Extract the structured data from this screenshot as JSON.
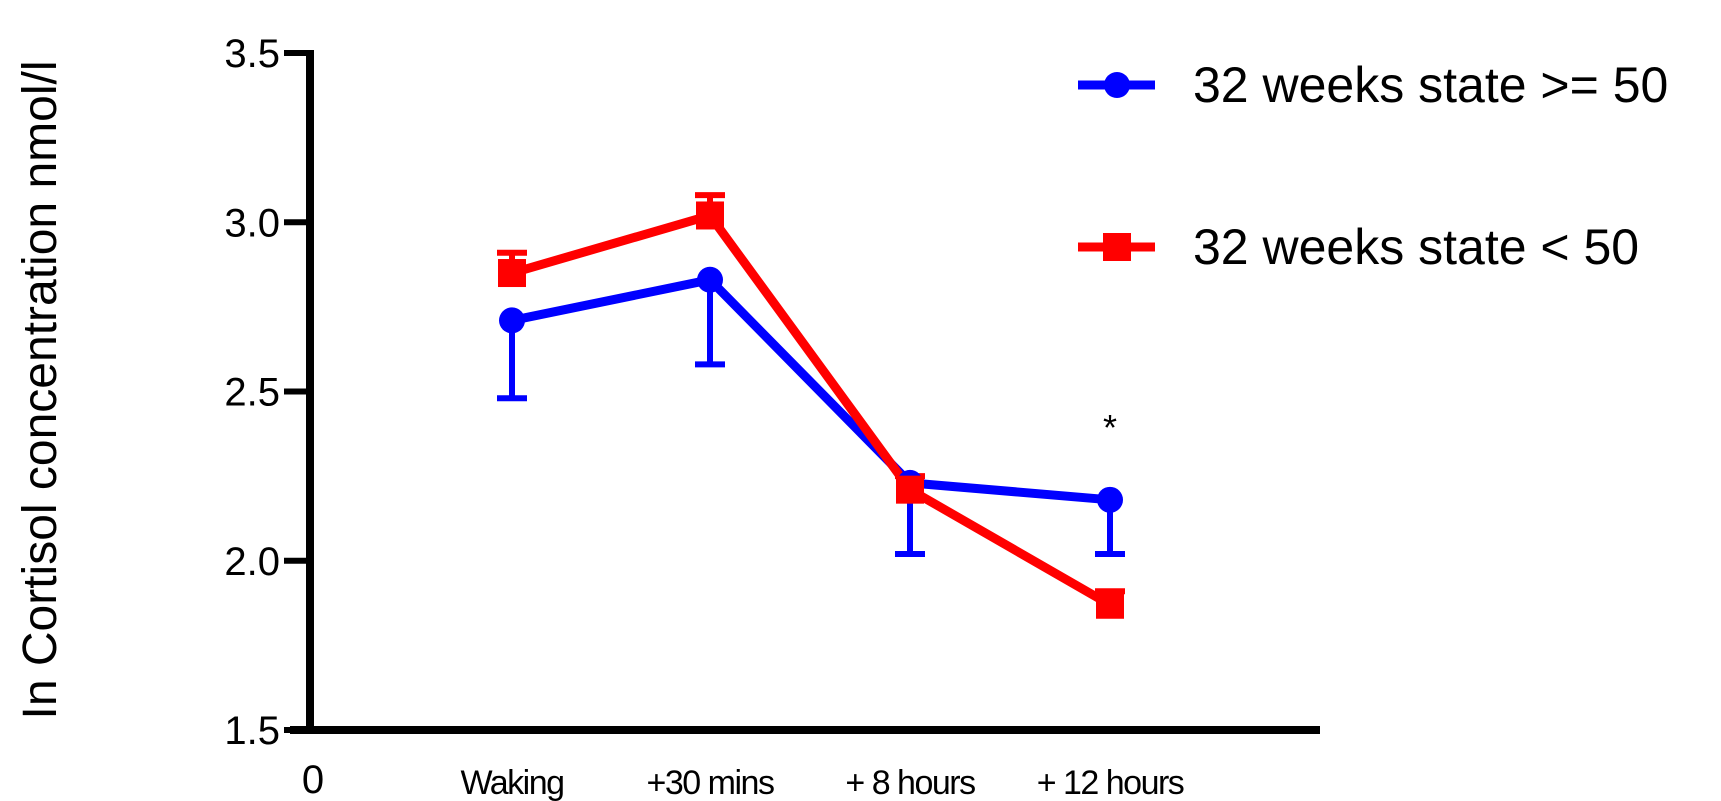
{
  "chart_data": {
    "type": "line",
    "title": "",
    "xlabel": "",
    "ylabel": "In Cortisol concentration nmol/l",
    "x_origin_label": "0",
    "categories": [
      "Waking",
      "+30 mins",
      "+ 8 hours",
      "+ 12 hours"
    ],
    "ylim": [
      1.5,
      3.5
    ],
    "yticks": [
      "1.5",
      "2.0",
      "2.5",
      "3.0",
      "3.5"
    ],
    "grid": false,
    "legend_position": "top-right",
    "series": [
      {
        "name": "32 weeks state >= 50",
        "color": "#0000ff",
        "marker": "circle",
        "values": [
          2.71,
          2.83,
          2.23,
          2.18
        ],
        "error": [
          0.23,
          0.25,
          0.21,
          0.16
        ],
        "error_direction": "down"
      },
      {
        "name": "32 weeks state < 50",
        "color": "#ff0000",
        "marker": "square",
        "values": [
          2.85,
          3.02,
          2.21,
          1.87
        ],
        "error": [
          0.06,
          0.06,
          0.04,
          0.04
        ],
        "error_direction": "up"
      }
    ],
    "annotations": [
      {
        "text": "*",
        "category_index": 3
      }
    ]
  }
}
